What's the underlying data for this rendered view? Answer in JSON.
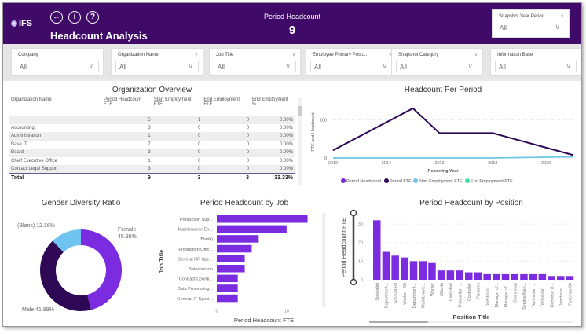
{
  "header": {
    "logo": "IFS",
    "title": "Headcount Analysis",
    "kpi_label": "Period Headcount",
    "kpi_value": "9",
    "nav": [
      "back-icon",
      "info-icon",
      "help-icon"
    ]
  },
  "year_slicer": {
    "label": "Snapshot Year Period",
    "value": "All"
  },
  "filters": [
    {
      "label": "Company",
      "value": "All"
    },
    {
      "label": "Organization Name",
      "value": "All"
    },
    {
      "label": "Job Title",
      "value": "All"
    },
    {
      "label": "Employee Primary Posit...",
      "value": "All"
    },
    {
      "label": "Snapshot Category",
      "value": "All"
    },
    {
      "label": "Information Base",
      "value": "All"
    }
  ],
  "org_table": {
    "title": "Organization Overview",
    "columns": [
      "Organization Name",
      "Period Headcount FTE",
      "Start Employment FTE",
      "End Employment FTE",
      "End Employment %"
    ],
    "rows": [
      [
        "",
        "5",
        "1",
        "0",
        "0.00%"
      ],
      [
        "Accounting",
        "3",
        "0",
        "0",
        "0.00%"
      ],
      [
        "Administration",
        "1",
        "0",
        "0",
        "0.00%"
      ],
      [
        "Base IT",
        "7",
        "0",
        "0",
        "0.00%"
      ],
      [
        "Board",
        "3",
        "0",
        "0",
        "0.00%"
      ],
      [
        "Chief Executive Office",
        "1",
        "0",
        "0",
        "0.00%"
      ],
      [
        "Contact Legal Support",
        "3",
        "0",
        "0",
        "0.00%"
      ]
    ],
    "total": [
      "Total",
      "9",
      "3",
      "3",
      "33.33%"
    ]
  },
  "chart_data": [
    {
      "type": "line",
      "title": "Headcount Per Period",
      "xlabel": "Reporting Year",
      "ylabel": "FTE and Headcount",
      "xlim": [
        2012,
        2021
      ],
      "ylim": [
        0,
        140
      ],
      "xticks": [
        "2012",
        "2014",
        "2016",
        "2018",
        "2020"
      ],
      "yticks": [
        "0",
        "100"
      ],
      "legend": "bottom",
      "x": [
        2012,
        2015,
        2016,
        2018,
        2021
      ],
      "series": [
        {
          "name": "Period Headcount",
          "color": "#7b2be0",
          "values": [
            20,
            130,
            65,
            65,
            8
          ]
        },
        {
          "name": "Period FTE",
          "color": "#2e0854",
          "values": [
            20,
            130,
            65,
            65,
            8
          ]
        },
        {
          "name": "Start Employment FTE",
          "color": "#6ec3f0",
          "values": [
            0,
            0,
            0,
            0,
            3
          ]
        },
        {
          "name": "End Employment FTE",
          "color": "#3ee0a0",
          "values": [
            0,
            0,
            0,
            0,
            3
          ]
        }
      ]
    },
    {
      "type": "pie",
      "title": "Gender Diversity Ratio",
      "categories": [
        "Female",
        "Male",
        "(Blank)"
      ],
      "values": [
        45.95,
        41.89,
        12.16
      ],
      "labels": [
        "45.95%",
        "41.89%",
        "12.16%"
      ],
      "colors": [
        "#7b2be0",
        "#2e0854",
        "#6ec3f0"
      ]
    },
    {
      "type": "bar",
      "orientation": "horizontal",
      "title": "Period Headcount by Job",
      "xlabel": "Period Headcount FTE",
      "ylabel": "Job Title",
      "xticks": [
        "0",
        "10"
      ],
      "xlim": [
        0,
        13.5
      ],
      "color": "#7b2be0",
      "categories": [
        "Production Sup...",
        "Maintenance En...",
        "(Blank)",
        "Production Offic...",
        "General HR Spe...",
        "Salesperson",
        "Contract Coordi...",
        "Data Processing...",
        "General IT Speci..."
      ],
      "values": [
        13,
        10,
        6,
        5,
        4,
        4,
        3,
        3,
        3
      ]
    },
    {
      "type": "bar",
      "title": "Period Headcount by Position",
      "xlabel": "Position Title",
      "ylabel": "Period Headcount FTE",
      "yticks": [
        "0",
        "10",
        "20",
        "30"
      ],
      "ylim": [
        0,
        33
      ],
      "color": "#7b2be0",
      "categories": [
        "Specialist",
        "Department...",
        "Accountant",
        "Worker - 00",
        "Department...",
        "Maintenanc...",
        "Worker",
        "(Blank)",
        "Executive",
        "Production ...",
        "Controller",
        "Presales",
        "Director of ...",
        "Manager of...",
        "Manager of...",
        "Sales man",
        "Service Man...",
        "Technician ...",
        "Technician ...",
        "Directeur G...",
        "Director of ...",
        "Foreman 00"
      ],
      "values": [
        32,
        15,
        13,
        12,
        10,
        10,
        9,
        5,
        5,
        5,
        4,
        4,
        3,
        3,
        3,
        3,
        3,
        3,
        3,
        2,
        2,
        2
      ]
    }
  ]
}
